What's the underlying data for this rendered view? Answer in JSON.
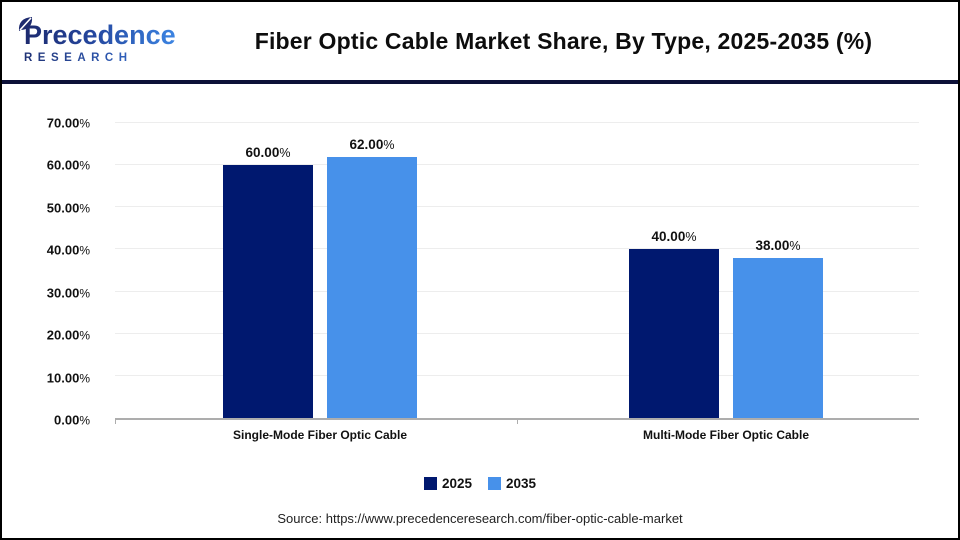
{
  "header": {
    "logo": {
      "name": "Precedence",
      "subname": "RESEARCH"
    },
    "title": "Fiber Optic Cable Market Share, By Type, 2025-2035 (%)"
  },
  "chart_data": {
    "type": "bar",
    "title": "Fiber Optic Cable Market Share, By Type, 2025-2035 (%)",
    "categories": [
      "Single-Mode Fiber Optic Cable",
      "Multi-Mode Fiber Optic Cable"
    ],
    "series": [
      {
        "name": "2025",
        "color": "#00186F",
        "values": [
          60,
          40
        ],
        "labels": [
          "60.00%",
          "40.00%"
        ]
      },
      {
        "name": "2035",
        "color": "#4791EA",
        "values": [
          62,
          38
        ],
        "labels": [
          "62.00%",
          "38.00%"
        ]
      }
    ],
    "xlabel": "",
    "ylabel": "",
    "ylim": [
      0,
      70
    ],
    "yticks": [
      {
        "value": 0,
        "label": "0.00%"
      },
      {
        "value": 10,
        "label": "10.00%"
      },
      {
        "value": 20,
        "label": "20.00%"
      },
      {
        "value": 30,
        "label": "30.00%"
      },
      {
        "value": 40,
        "label": "40.00%"
      },
      {
        "value": 50,
        "label": "50.00%"
      },
      {
        "value": 60,
        "label": "60.00%"
      },
      {
        "value": 70,
        "label": "70.00%"
      }
    ],
    "grid": true,
    "legend_position": "bottom"
  },
  "footer": {
    "source": "Source: https://www.precedenceresearch.com/fiber-optic-cable-market"
  },
  "colors": {
    "divider": "#0D1138",
    "baseline": "#ADADAD",
    "gridline": "#EDEDED"
  }
}
